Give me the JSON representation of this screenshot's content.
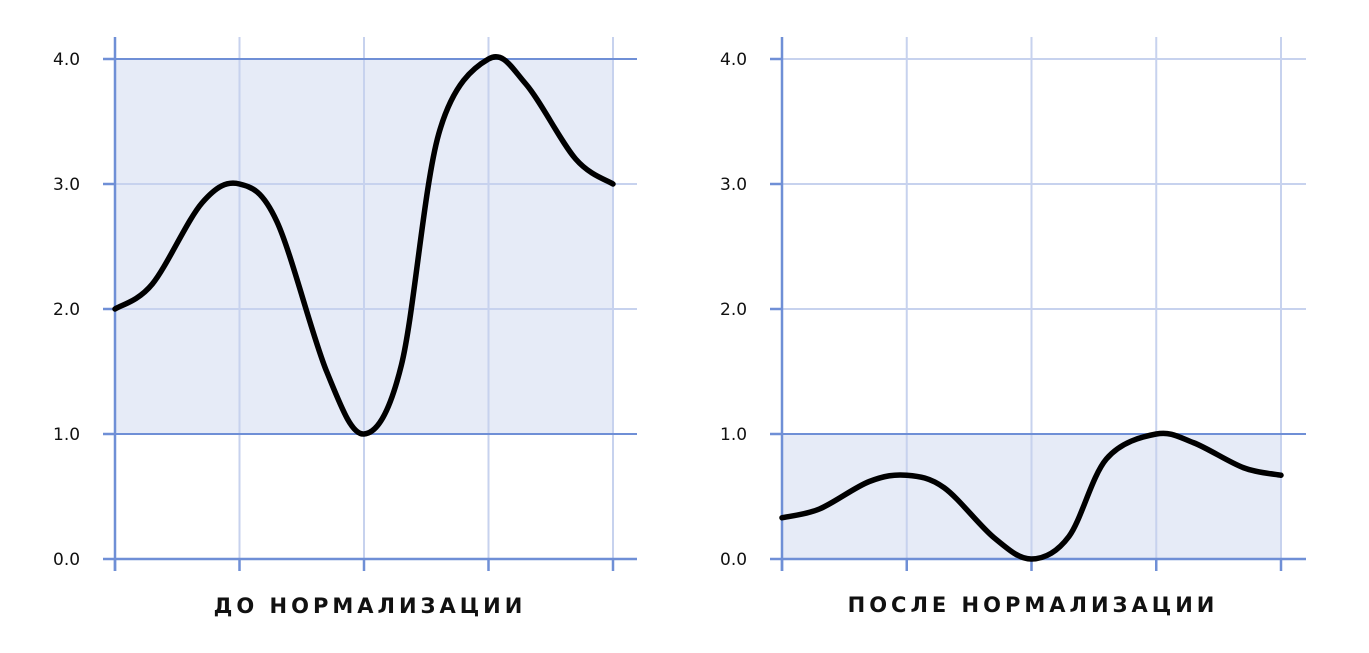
{
  "colors": {
    "background": "#ffffff",
    "band_fill": "#e6ebf7",
    "grid": "#c7d2ee",
    "axis": "#6f8fd6",
    "curve": "#000000",
    "text": "#111111"
  },
  "chart_data": [
    {
      "type": "line",
      "title": "ДО НОРМАЛИЗАЦИИ",
      "xlabel": "",
      "ylabel": "",
      "xlim": [
        0,
        4
      ],
      "ylim": [
        0,
        4
      ],
      "y_ticks": [
        "0.0",
        "1.0",
        "2.0",
        "3.0",
        "4.0"
      ],
      "grid": true,
      "shaded_band": [
        1,
        4
      ],
      "series": [
        {
          "x": [
            0,
            0.3,
            0.7,
            1.0,
            1.3,
            1.7,
            2.0,
            2.3,
            2.6,
            3.0,
            3.3,
            3.7,
            4.0
          ],
          "values": [
            2.0,
            2.2,
            2.85,
            3.0,
            2.7,
            1.5,
            1.0,
            1.55,
            3.4,
            4.0,
            3.8,
            3.2,
            3.0
          ]
        }
      ]
    },
    {
      "type": "line",
      "title": "ПОСЛЕ НОРМАЛИЗАЦИИ",
      "xlabel": "",
      "ylabel": "",
      "xlim": [
        0,
        4
      ],
      "ylim": [
        0,
        4
      ],
      "y_ticks": [
        "0.0",
        "1.0",
        "2.0",
        "3.0",
        "4.0"
      ],
      "grid": true,
      "shaded_band": [
        0,
        1
      ],
      "series": [
        {
          "x": [
            0,
            0.3,
            0.7,
            1.0,
            1.3,
            1.7,
            2.0,
            2.3,
            2.6,
            3.0,
            3.3,
            3.7,
            4.0
          ],
          "values": [
            0.33,
            0.4,
            0.62,
            0.67,
            0.57,
            0.17,
            0.0,
            0.18,
            0.8,
            1.0,
            0.93,
            0.73,
            0.67
          ]
        }
      ]
    }
  ]
}
